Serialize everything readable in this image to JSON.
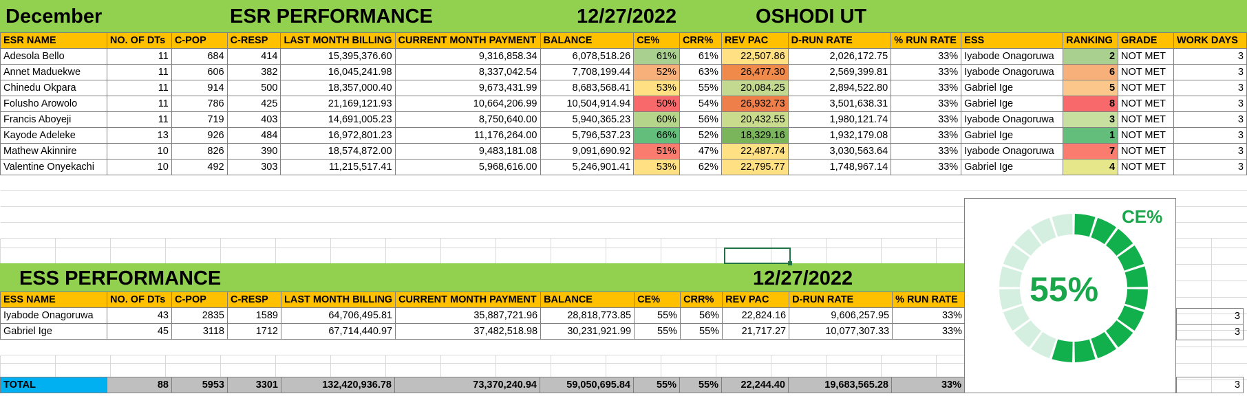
{
  "top_banner": {
    "month": "December",
    "title": "ESR PERFORMANCE",
    "date": "12/27/2022",
    "unit": "OSHODI UT"
  },
  "esr_table": {
    "headers": [
      "ESR NAME",
      "NO. OF DTs",
      "C-POP",
      "C-RESP",
      "LAST MONTH BILLING",
      "CURRENT MONTH PAYMENT",
      "BALANCE",
      "CE%",
      "CRR%",
      "REV PAC",
      "D-RUN RATE",
      "% RUN RATE",
      "ESS",
      "RANKING",
      "GRADE",
      "WORK DAYS"
    ],
    "rows": [
      [
        "Adesola Bello",
        "11",
        "684",
        "414",
        "15,395,376.60",
        "9,316,858.34",
        "6,078,518.26",
        "61%",
        "61%",
        "22,507.86",
        "2,026,172.75",
        "33%",
        "Iyabode Onagoruwa",
        "2",
        "NOT MET",
        "3"
      ],
      [
        "Annet Maduekwe",
        "11",
        "606",
        "382",
        "16,045,241.98",
        "8,337,042.54",
        "7,708,199.44",
        "52%",
        "63%",
        "26,477.30",
        "2,569,399.81",
        "33%",
        "Iyabode Onagoruwa",
        "6",
        "NOT MET",
        "3"
      ],
      [
        "Chinedu Okpara",
        "11",
        "914",
        "500",
        "18,357,000.40",
        "9,673,431.99",
        "8,683,568.41",
        "53%",
        "55%",
        "20,084.25",
        "2,894,522.80",
        "33%",
        "Gabriel Ige",
        "5",
        "NOT MET",
        "3"
      ],
      [
        "Folusho Arowolo",
        "11",
        "786",
        "425",
        "21,169,121.93",
        "10,664,206.99",
        "10,504,914.94",
        "50%",
        "54%",
        "26,932.73",
        "3,501,638.31",
        "33%",
        "Gabriel Ige",
        "8",
        "NOT MET",
        "3"
      ],
      [
        "Francis Aboyeji",
        "11",
        "719",
        "403",
        "14,691,005.23",
        "8,750,640.00",
        "5,940,365.23",
        "60%",
        "56%",
        "20,432.55",
        "1,980,121.74",
        "33%",
        "Iyabode Onagoruwa",
        "3",
        "NOT MET",
        "3"
      ],
      [
        "Kayode Adeleke",
        "13",
        "926",
        "484",
        "16,972,801.23",
        "11,176,264.00",
        "5,796,537.23",
        "66%",
        "52%",
        "18,329.16",
        "1,932,179.08",
        "33%",
        "Gabriel Ige",
        "1",
        "NOT MET",
        "3"
      ],
      [
        "Mathew Akinnire",
        "10",
        "826",
        "390",
        "18,574,872.00",
        "9,483,181.08",
        "9,091,690.92",
        "51%",
        "47%",
        "22,487.74",
        "3,030,563.64",
        "33%",
        "Iyabode Onagoruwa",
        "7",
        "NOT MET",
        "3"
      ],
      [
        "Valentine Onyekachi",
        "10",
        "492",
        "303",
        "11,215,517.41",
        "5,968,616.00",
        "5,246,901.41",
        "53%",
        "62%",
        "22,795.77",
        "1,748,967.14",
        "33%",
        "Gabriel Ige",
        "4",
        "NOT MET",
        "3"
      ]
    ],
    "colors": {
      "ce": [
        "#a9d08e",
        "#f8b07a",
        "#ffe083",
        "#f8696b",
        "#b5d58a",
        "#63be7b",
        "#f97c6e",
        "#ffe083"
      ],
      "revpac": [
        "#ffe083",
        "#f08a4b",
        "#c3d98f",
        "#ee7f4b",
        "#c9dc8e",
        "#7ab55c",
        "#ffe083",
        "#ffe083"
      ],
      "rank": [
        "#a9d08e",
        "#f8b07a",
        "#fcc78a",
        "#f8696b",
        "#c7e0a0",
        "#63be7b",
        "#f97c6e",
        "#e6e68a"
      ]
    }
  },
  "ess_banner": {
    "title": "ESS PERFORMANCE",
    "date": "12/27/2022"
  },
  "ess_table": {
    "headers": [
      "ESS NAME",
      "NO. OF DTs",
      "C-POP",
      "C-RESP",
      "LAST MONTH BILLING",
      "CURRENT MONTH PAYMENT",
      "BALANCE",
      "CE%",
      "CRR%",
      "REV PAC",
      "D-RUN RATE",
      "% RUN RATE"
    ],
    "rows": [
      [
        "Iyabode Onagoruwa",
        "43",
        "2835",
        "1589",
        "64,706,495.81",
        "35,887,721.96",
        "28,818,773.85",
        "55%",
        "56%",
        "22,824.16",
        "9,606,257.95",
        "33%"
      ],
      [
        "Gabriel Ige",
        "45",
        "3118",
        "1712",
        "67,714,440.97",
        "37,482,518.98",
        "30,231,921.99",
        "55%",
        "55%",
        "21,717.27",
        "10,077,307.33",
        "33%"
      ]
    ],
    "work_days": [
      "3",
      "3"
    ]
  },
  "total_row": {
    "label": "TOTAL",
    "values": [
      "88",
      "5953",
      "3301",
      "132,420,936.78",
      "73,370,240.94",
      "59,050,695.84",
      "55%",
      "55%",
      "22,244.40",
      "19,683,565.28",
      "33%"
    ],
    "work_days": "3"
  },
  "gauge": {
    "title": "CE%",
    "value_text": "55%",
    "value": 0.55,
    "filled_color": "#12b04c",
    "empty_color": "#d4efe0"
  }
}
